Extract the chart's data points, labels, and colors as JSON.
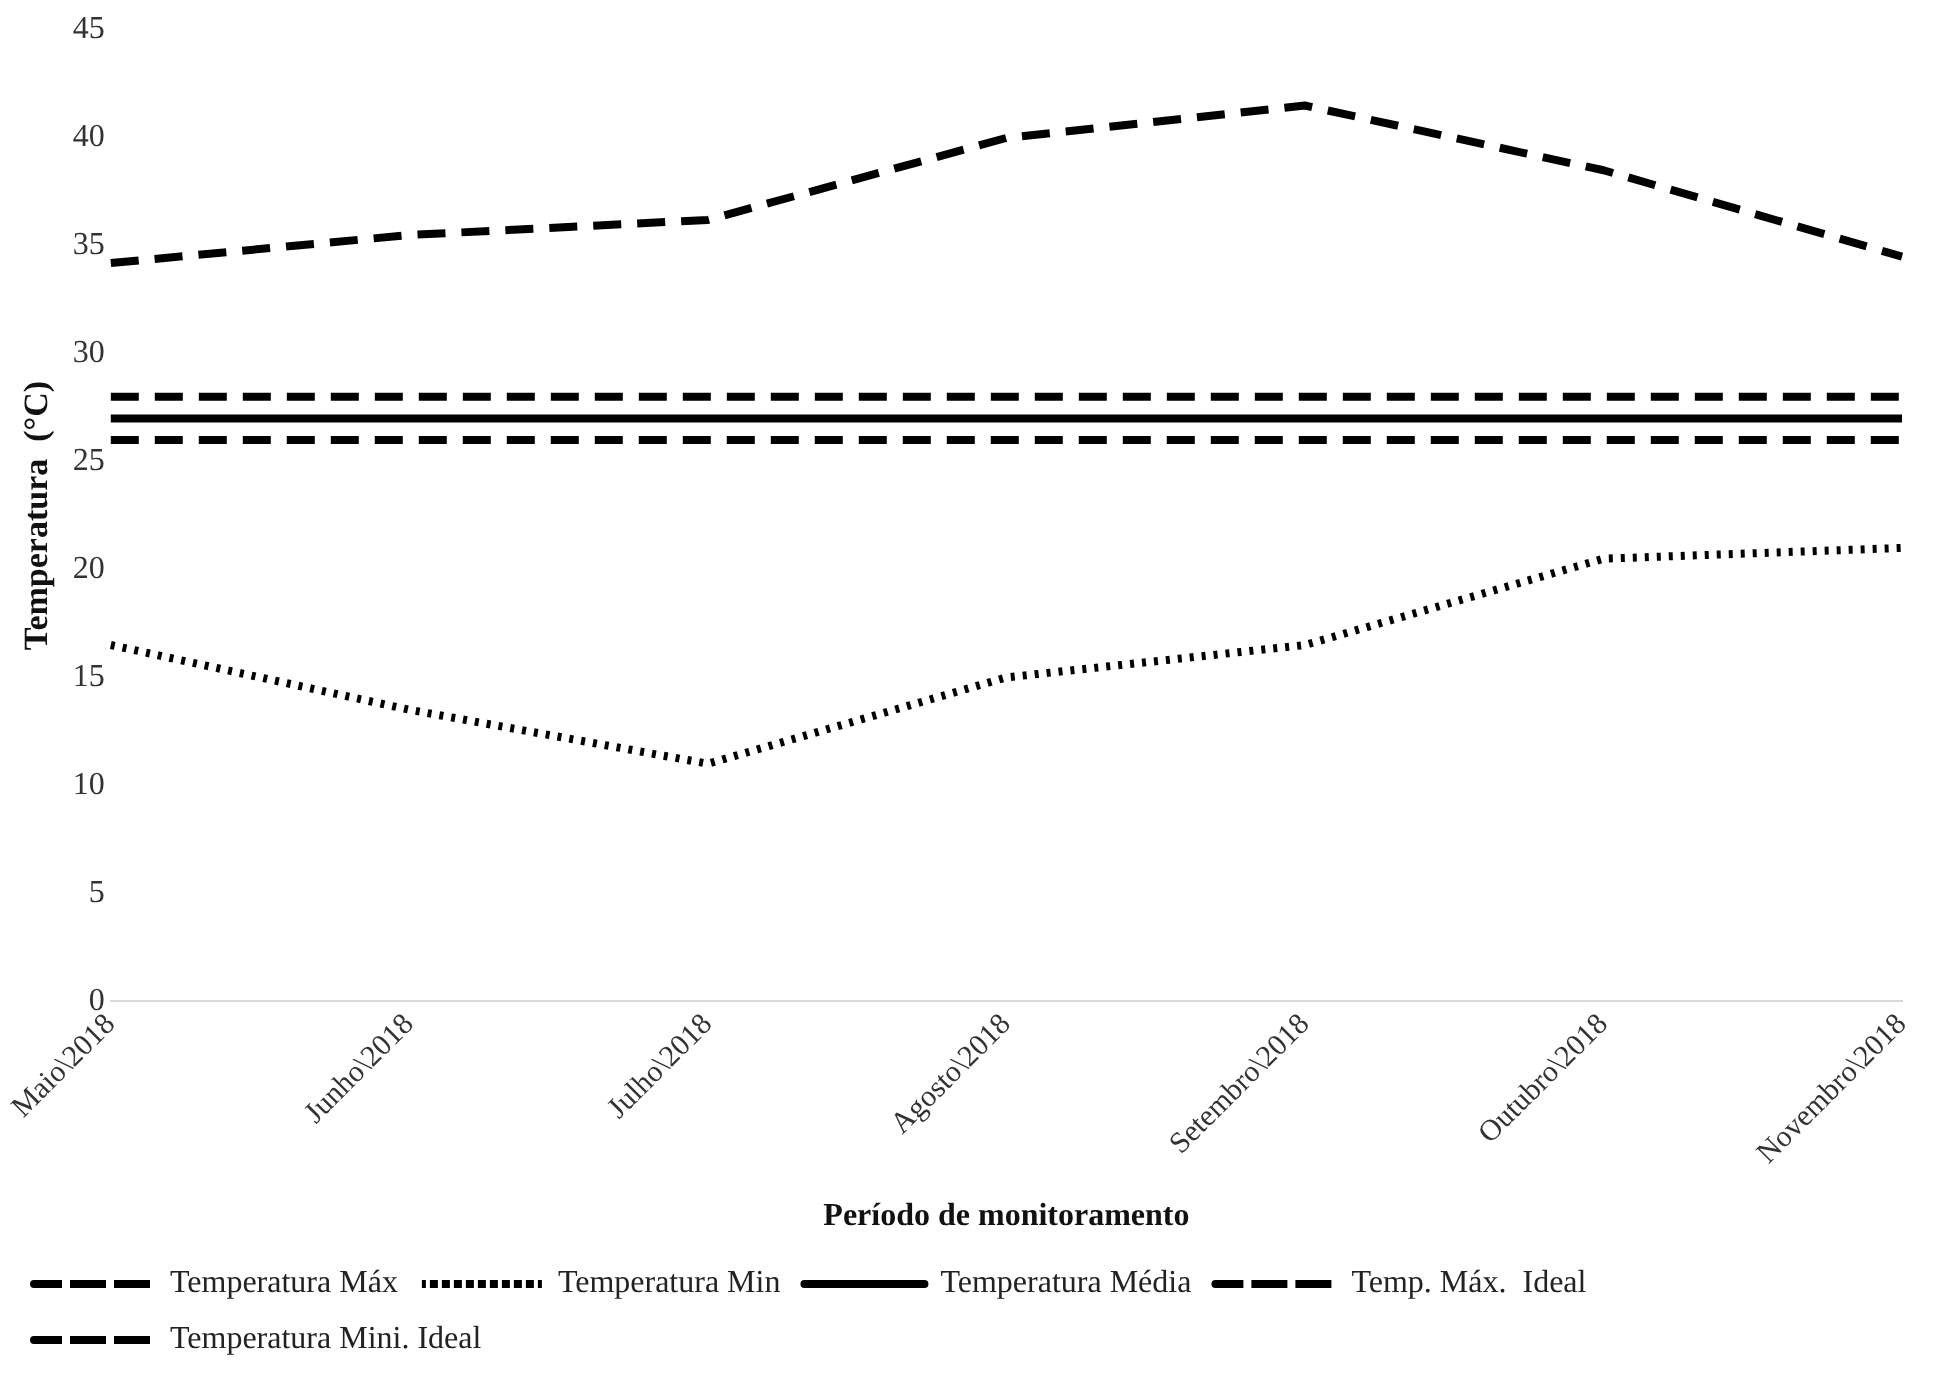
{
  "chart_data": {
    "type": "line",
    "xlabel": "Período de monitoramento",
    "ylabel": "Temperatura  (°C)",
    "categories": [
      "Maio\\2018",
      "Junho\\2018",
      "Julho\\2018",
      "Agosto\\2018",
      "Setembro\\2018",
      "Outubro\\2018",
      "Novembro\\2018"
    ],
    "series": [
      {
        "name": "Temperatura Máx",
        "color": "#000000",
        "line_style": "dashed",
        "values": [
          34.2,
          35.5,
          36.2,
          40,
          41.5,
          38.5,
          34.5
        ]
      },
      {
        "name": "Temperatura Min",
        "color": "#000000",
        "line_style": "dotted",
        "values": [
          16.5,
          13.5,
          11,
          15,
          16.5,
          20.5,
          21
        ]
      },
      {
        "name": "Temperatura Média",
        "color": "#000000",
        "line_style": "solid",
        "values": [
          27,
          27,
          27,
          27,
          27,
          27,
          27
        ]
      },
      {
        "name": "Temp. Máx.  Ideal",
        "color": "#000000",
        "line_style": "dashed",
        "values": [
          28,
          28,
          28,
          28,
          28,
          28,
          28
        ]
      },
      {
        "name": "Temperatura Mini. Ideal",
        "color": "#000000",
        "line_style": "dashed",
        "values": [
          26,
          26,
          26,
          26,
          26,
          26,
          26
        ]
      }
    ],
    "ylim": [
      0,
      45
    ],
    "yticks": [
      0,
      5,
      10,
      15,
      20,
      25,
      30,
      35,
      40,
      45
    ],
    "grid": false,
    "legend": "bottom",
    "marker": "none"
  }
}
